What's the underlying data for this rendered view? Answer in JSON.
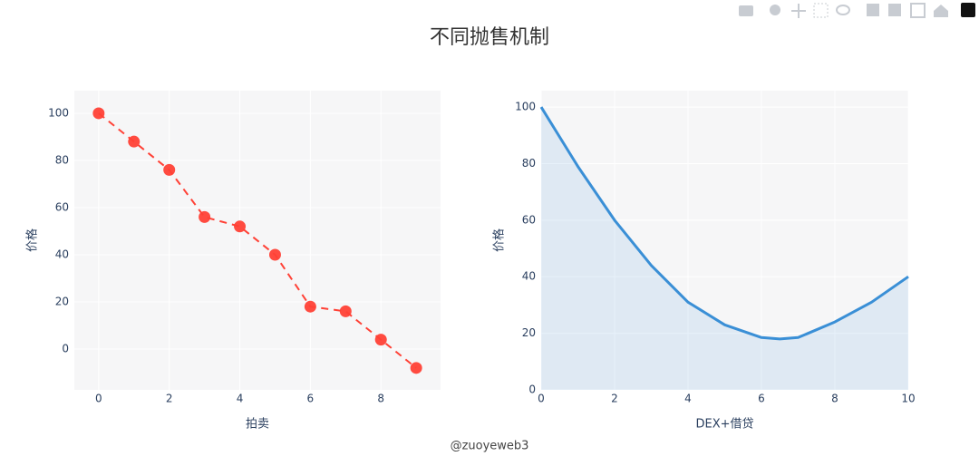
{
  "title": "不同抛售机制",
  "watermark": "@zuoyeweb3",
  "chart_data": [
    {
      "type": "line",
      "x": [
        0,
        1,
        2,
        3,
        4,
        5,
        6,
        7,
        8,
        9
      ],
      "values": [
        100,
        88,
        76,
        56,
        52,
        40,
        18,
        16,
        4,
        -8
      ],
      "color": "#ff4136",
      "dash": true,
      "markers": true,
      "fill": false,
      "xlim": [
        -0.69,
        9.69
      ],
      "ylim": [
        -17.3,
        109.6
      ],
      "xticks": [
        0,
        2,
        4,
        6,
        8
      ],
      "yticks": [
        0,
        20,
        40,
        60,
        80,
        100
      ],
      "xlabel": "拍卖",
      "ylabel": "价格"
    },
    {
      "type": "area",
      "x": [
        0,
        1,
        2,
        3,
        4,
        5,
        6,
        6.5,
        7,
        8,
        9,
        10
      ],
      "values": [
        100,
        79,
        60,
        44,
        31,
        23,
        18.5,
        18,
        18.5,
        24,
        31,
        40
      ],
      "color": "#3a8fd6",
      "dash": false,
      "markers": false,
      "fill": true,
      "xlim": [
        0,
        10
      ],
      "ylim": [
        0,
        105.8
      ],
      "xticks": [
        0,
        2,
        4,
        6,
        8,
        10
      ],
      "yticks": [
        0,
        20,
        40,
        60,
        80,
        100
      ],
      "xlabel": "DEX+借贷",
      "ylabel": "价格"
    }
  ]
}
